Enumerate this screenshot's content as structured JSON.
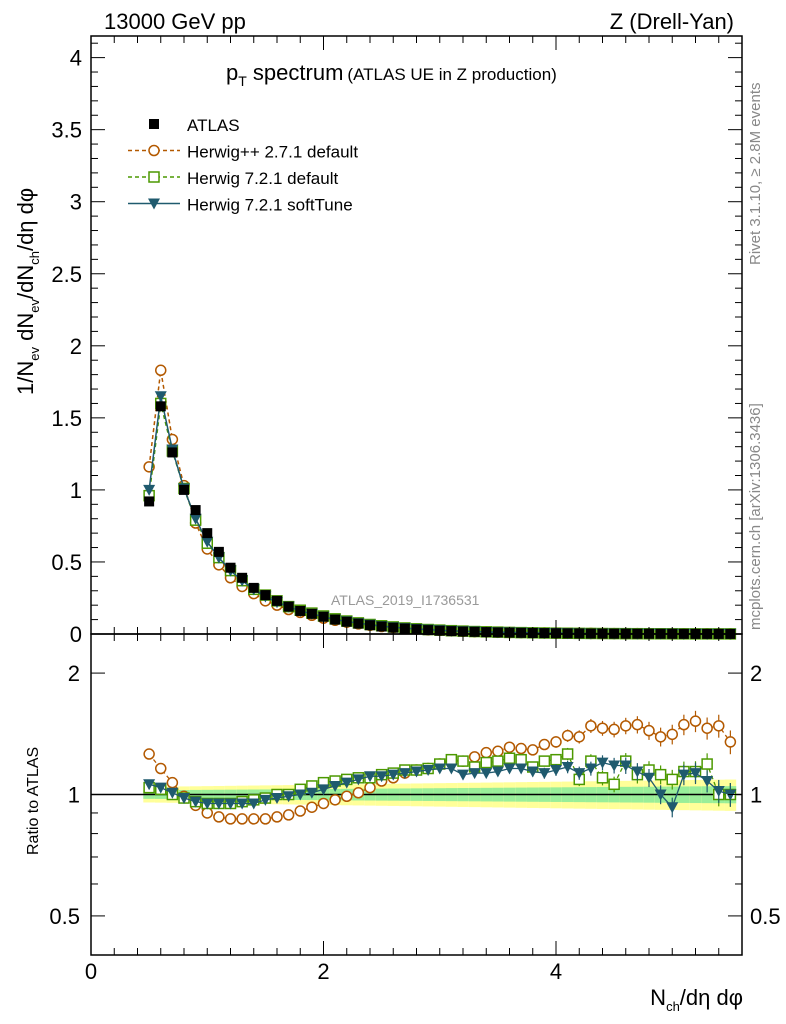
{
  "header": {
    "left": "13000 GeV pp",
    "right": "Z (Drell-Yan)"
  },
  "title": {
    "main": "p",
    "sub": "T",
    "rest": " spectrum",
    "note": "(ATLAS UE in Z production)"
  },
  "side_labels": {
    "rivet": "Rivet 3.1.10, ≥ 2.8M events",
    "mcplots": "mcplots.cern.ch [arXiv:1306.3436]"
  },
  "watermark": "ATLAS_2019_I1736531",
  "axes": {
    "ylabel_main": "1/N_ev dN_ev/dN_ch/dη dφ",
    "ylabel_ratio": "Ratio to ATLAS",
    "xlabel": "N_ch/dη dφ",
    "x_ticks": [
      "0",
      "2",
      "4"
    ],
    "y_ticks_main": [
      "0",
      "0.5",
      "1",
      "1.5",
      "2",
      "2.5",
      "3",
      "3.5",
      "4"
    ],
    "y_ticks_ratio": [
      "0.5",
      "1",
      "2"
    ]
  },
  "legend": [
    {
      "label": "ATLAS",
      "color": "#000000",
      "marker": "square-filled"
    },
    {
      "label": "Herwig++ 2.7.1 default",
      "color": "#b35900",
      "marker": "circle-open",
      "dash": "dashed"
    },
    {
      "label": "Herwig 7.2.1 default",
      "color": "#4c9900",
      "marker": "square-open",
      "dash": "dashed"
    },
    {
      "label": "Herwig 7.2.1 softTune",
      "color": "#1f5a6e",
      "marker": "triangle-down",
      "dash": "solid"
    }
  ],
  "chart_data": {
    "type": "scatter",
    "xlim": [
      0,
      5.6
    ],
    "ylim_main": [
      0,
      4.15
    ],
    "ylim_ratio_log": [
      0.4,
      2.5
    ],
    "x": [
      0.5,
      0.6,
      0.7,
      0.8,
      0.9,
      1.0,
      1.1,
      1.2,
      1.3,
      1.4,
      1.5,
      1.6,
      1.7,
      1.8,
      1.9,
      2.0,
      2.1,
      2.2,
      2.3,
      2.4,
      2.5,
      2.6,
      2.7,
      2.8,
      2.9,
      3.0,
      3.1,
      3.2,
      3.3,
      3.4,
      3.5,
      3.6,
      3.7,
      3.8,
      3.9,
      4.0,
      4.1,
      4.2,
      4.3,
      4.4,
      4.5,
      4.6,
      4.7,
      4.8,
      4.9,
      5.0,
      5.1,
      5.2,
      5.3,
      5.4,
      5.5
    ],
    "atlas": [
      0.92,
      1.58,
      1.26,
      1.0,
      0.86,
      0.7,
      0.57,
      0.46,
      0.39,
      0.32,
      0.27,
      0.23,
      0.19,
      0.16,
      0.14,
      0.12,
      0.1,
      0.085,
      0.072,
      0.061,
      0.052,
      0.044,
      0.038,
      0.032,
      0.027,
      0.023,
      0.02,
      0.017,
      0.015,
      0.013,
      0.011,
      0.0095,
      0.008,
      0.007,
      0.006,
      0.005,
      0.0043,
      0.0037,
      0.0032,
      0.0027,
      0.0023,
      0.002,
      0.0017,
      0.0015,
      0.0013,
      0.0011,
      0.00095,
      0.0008,
      0.0007,
      0.0006,
      0.0005
    ],
    "series": [
      {
        "name": "Herwig++ 2.7.1 default",
        "main": [
          1.16,
          1.83,
          1.35,
          1.03,
          0.77,
          0.59,
          0.48,
          0.39,
          0.33,
          0.28,
          0.23,
          0.2,
          0.17,
          0.15,
          0.13,
          0.11,
          0.095,
          0.082,
          0.07,
          0.06,
          0.052,
          0.045,
          0.039,
          0.034,
          0.029,
          0.025,
          0.022,
          0.019,
          0.016,
          0.014,
          0.012,
          0.01,
          0.009,
          0.008,
          0.007,
          0.006,
          0.005,
          0.0045,
          0.004,
          0.0035,
          0.003,
          0.0026,
          0.0023,
          0.002,
          0.0017,
          0.0015,
          0.0013,
          0.0011,
          0.001,
          0.0009,
          0.0008
        ],
        "ratio": [
          1.26,
          1.16,
          1.07,
          0.99,
          0.94,
          0.9,
          0.88,
          0.87,
          0.87,
          0.87,
          0.87,
          0.88,
          0.89,
          0.91,
          0.93,
          0.95,
          0.97,
          0.99,
          1.01,
          1.04,
          1.08,
          1.1,
          1.13,
          1.15,
          1.16,
          1.19,
          1.21,
          1.21,
          1.24,
          1.27,
          1.28,
          1.31,
          1.3,
          1.29,
          1.33,
          1.35,
          1.4,
          1.39,
          1.48,
          1.46,
          1.45,
          1.48,
          1.49,
          1.44,
          1.39,
          1.41,
          1.49,
          1.52,
          1.46,
          1.48,
          1.35
        ]
      },
      {
        "name": "Herwig 7.2.1 default",
        "main": [
          0.96,
          1.6,
          1.27,
          1.01,
          0.79,
          0.63,
          0.53,
          0.44,
          0.37,
          0.31,
          0.27,
          0.23,
          0.19,
          0.165,
          0.145,
          0.125,
          0.105,
          0.09,
          0.077,
          0.066,
          0.057,
          0.049,
          0.042,
          0.036,
          0.031,
          0.027,
          0.023,
          0.02,
          0.017,
          0.015,
          0.013,
          0.011,
          0.0095,
          0.0082,
          0.007,
          0.006,
          0.0052,
          0.0045,
          0.0039,
          0.0033,
          0.0028,
          0.0024,
          0.0021,
          0.0018,
          0.0016,
          0.0014,
          0.0012,
          0.001,
          0.0009,
          0.0008,
          0.0007
        ],
        "ratio": [
          1.04,
          1.03,
          1.0,
          0.98,
          0.96,
          0.95,
          0.95,
          0.95,
          0.96,
          0.97,
          0.98,
          1.0,
          1.0,
          1.03,
          1.05,
          1.07,
          1.08,
          1.09,
          1.1,
          1.1,
          1.12,
          1.13,
          1.15,
          1.15,
          1.16,
          1.19,
          1.22,
          1.21,
          1.17,
          1.2,
          1.21,
          1.23,
          1.22,
          1.17,
          1.21,
          1.22,
          1.26,
          1.09,
          1.21,
          1.1,
          1.06,
          1.21,
          1.12,
          1.15,
          1.12,
          1.09,
          1.14,
          1.14,
          1.19,
          1.0,
          1.0
        ]
      },
      {
        "name": "Herwig 7.2.1 softTune",
        "main": [
          1.0,
          1.65,
          1.28,
          1.01,
          0.8,
          0.64,
          0.53,
          0.44,
          0.37,
          0.31,
          0.26,
          0.22,
          0.19,
          0.16,
          0.14,
          0.12,
          0.1,
          0.088,
          0.075,
          0.064,
          0.055,
          0.047,
          0.041,
          0.035,
          0.03,
          0.026,
          0.022,
          0.019,
          0.017,
          0.014,
          0.012,
          0.011,
          0.0092,
          0.008,
          0.0069,
          0.0059,
          0.0051,
          0.0044,
          0.0038,
          0.0032,
          0.0028,
          0.0024,
          0.0021,
          0.0018,
          0.0016,
          0.0014,
          0.0012,
          0.001,
          0.0009,
          0.0008,
          0.0007
        ],
        "ratio": [
          1.06,
          1.04,
          1.01,
          0.98,
          0.96,
          0.95,
          0.95,
          0.95,
          0.95,
          0.95,
          0.97,
          0.98,
          0.99,
          1.0,
          1.01,
          1.03,
          1.05,
          1.07,
          1.09,
          1.11,
          1.11,
          1.12,
          1.13,
          1.14,
          1.15,
          1.16,
          1.16,
          1.12,
          1.13,
          1.13,
          1.14,
          1.16,
          1.16,
          1.14,
          1.13,
          1.15,
          1.17,
          1.13,
          1.16,
          1.2,
          1.18,
          1.18,
          1.14,
          1.1,
          1.0,
          0.93,
          1.12,
          1.13,
          1.08,
          1.02,
          1.0
        ]
      }
    ]
  }
}
